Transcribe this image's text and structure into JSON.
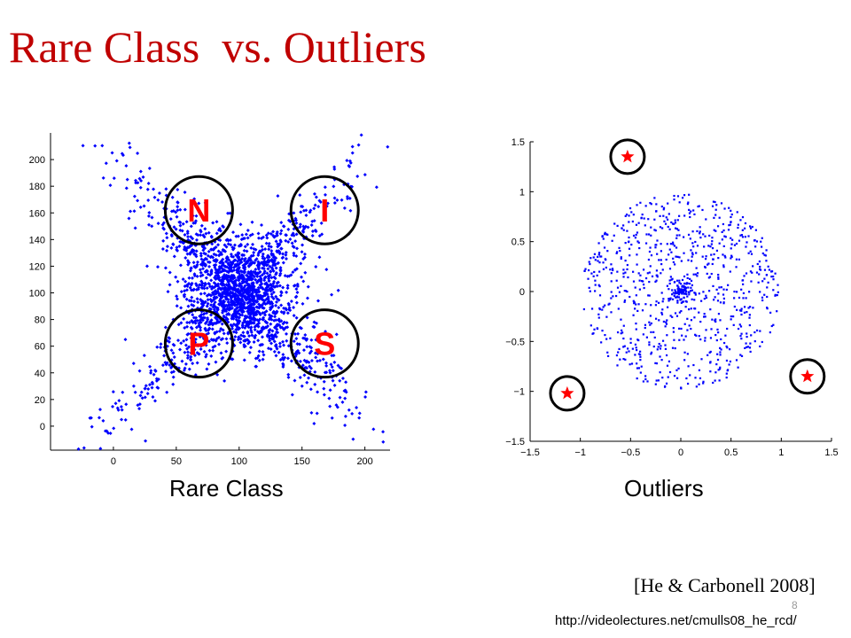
{
  "slide": {
    "title": "Rare Class  vs. Outliers",
    "left_caption": "Rare Class",
    "right_caption": "Outliers",
    "citation": "[He & Carbonell 2008]",
    "page_number": "8",
    "source_url": "http://videolectures.net/cmulls08_he_rcd/"
  },
  "colors": {
    "title": "#c00000",
    "points": "#0000ff",
    "markers": "#ff0000",
    "circles": "#000000"
  },
  "chart_data": [
    {
      "type": "scatter",
      "title": "",
      "xlabel": "",
      "ylabel": "",
      "xlim": [
        -50,
        220
      ],
      "ylim": [
        -18,
        220
      ],
      "xticks": [
        0,
        50,
        100,
        150,
        200
      ],
      "yticks": [
        0,
        20,
        40,
        60,
        80,
        100,
        120,
        140,
        160,
        180,
        200
      ],
      "grid": false,
      "distribution": "dense blue point cloud in an X shape centered near (100, 100), spanning roughly 0-210 in x and -15-215 in y",
      "rare_class_annotations": [
        {
          "label": "N",
          "x": 68,
          "y": 162
        },
        {
          "label": "I",
          "x": 168,
          "y": 162
        },
        {
          "label": "P",
          "x": 68,
          "y": 62
        },
        {
          "label": "S",
          "x": 168,
          "y": 62
        }
      ]
    },
    {
      "type": "scatter",
      "title": "",
      "xlabel": "",
      "ylabel": "",
      "xlim": [
        -1.5,
        1.5
      ],
      "ylim": [
        -1.5,
        1.5
      ],
      "xticks": [
        -1.5,
        -1,
        -0.5,
        0,
        0.5,
        1,
        1.5
      ],
      "xtick_labels": [
        "−1.5",
        "−1",
        "−0.5",
        "0",
        "0.5",
        "1",
        "1.5"
      ],
      "yticks": [
        -1.5,
        -1,
        -0.5,
        0,
        0.5,
        1,
        1.5
      ],
      "ytick_labels": [
        "−1.5",
        "−1",
        "−0.5",
        "0",
        "0.5",
        "1",
        "1.5"
      ],
      "grid": false,
      "distribution": "blue points filling a disc of radius about 1 centered at (0, 0), denser near the center",
      "outliers": [
        {
          "x": -0.53,
          "y": 1.35
        },
        {
          "x": -1.13,
          "y": -1.02
        },
        {
          "x": 1.26,
          "y": -0.85
        }
      ]
    }
  ]
}
